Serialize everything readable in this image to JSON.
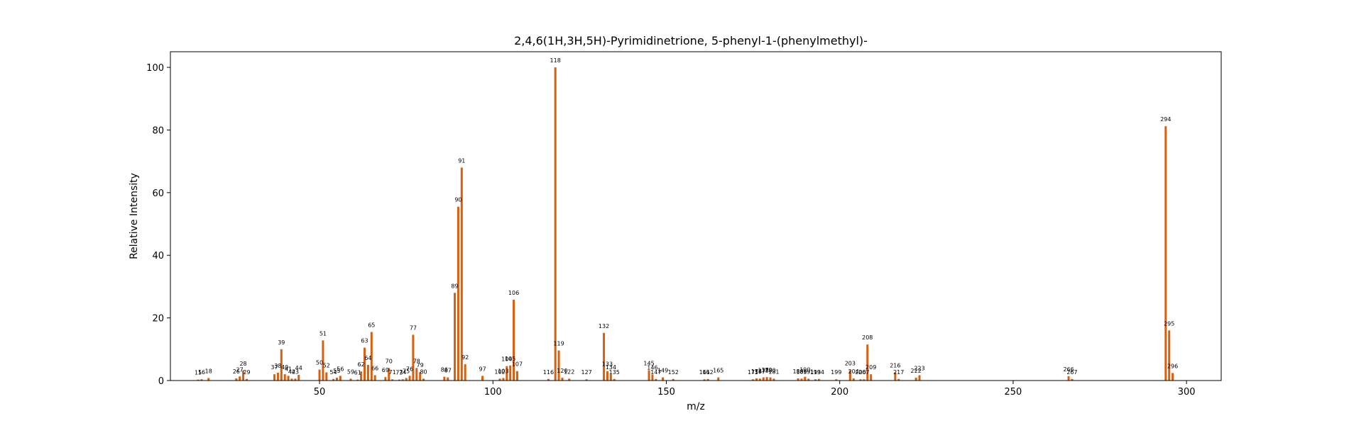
{
  "chart_data": {
    "type": "bar",
    "title": "2,4,6(1H,3H,5H)-Pyrimidinetrione, 5-phenyl-1-(phenylmethyl)-",
    "xlabel": "m/z",
    "ylabel": "Relative Intensity",
    "xlim": [
      7,
      310
    ],
    "ylim": [
      0,
      105
    ],
    "xticks": [
      50,
      100,
      150,
      200,
      250,
      300
    ],
    "yticks": [
      0,
      20,
      40,
      60,
      80,
      100
    ],
    "bar_color": "#d95f0e",
    "grid": false,
    "legend": "none",
    "peaks": [
      {
        "mz": 15,
        "intensity": 0.3
      },
      {
        "mz": 16,
        "intensity": 0.4
      },
      {
        "mz": 18,
        "intensity": 0.8
      },
      {
        "mz": 26,
        "intensity": 0.7
      },
      {
        "mz": 27,
        "intensity": 1.3
      },
      {
        "mz": 28,
        "intensity": 3.2
      },
      {
        "mz": 29,
        "intensity": 0.5
      },
      {
        "mz": 37,
        "intensity": 2.0
      },
      {
        "mz": 38,
        "intensity": 2.5
      },
      {
        "mz": 39,
        "intensity": 10.0
      },
      {
        "mz": 40,
        "intensity": 2.0
      },
      {
        "mz": 41,
        "intensity": 1.5
      },
      {
        "mz": 42,
        "intensity": 0.6
      },
      {
        "mz": 43,
        "intensity": 0.6
      },
      {
        "mz": 44,
        "intensity": 1.8
      },
      {
        "mz": 50,
        "intensity": 3.5
      },
      {
        "mz": 51,
        "intensity": 12.8
      },
      {
        "mz": 52,
        "intensity": 2.6
      },
      {
        "mz": 54,
        "intensity": 0.5
      },
      {
        "mz": 55,
        "intensity": 0.9
      },
      {
        "mz": 56,
        "intensity": 1.5
      },
      {
        "mz": 59,
        "intensity": 0.6
      },
      {
        "mz": 61,
        "intensity": 0.3
      },
      {
        "mz": 62,
        "intensity": 2.9
      },
      {
        "mz": 63,
        "intensity": 10.5
      },
      {
        "mz": 64,
        "intensity": 5.0
      },
      {
        "mz": 65,
        "intensity": 15.5
      },
      {
        "mz": 66,
        "intensity": 1.7
      },
      {
        "mz": 69,
        "intensity": 1.1
      },
      {
        "mz": 70,
        "intensity": 4.0
      },
      {
        "mz": 71,
        "intensity": 0.4
      },
      {
        "mz": 73,
        "intensity": 0.3
      },
      {
        "mz": 74,
        "intensity": 0.4
      },
      {
        "mz": 75,
        "intensity": 0.8
      },
      {
        "mz": 76,
        "intensity": 1.5
      },
      {
        "mz": 77,
        "intensity": 14.6
      },
      {
        "mz": 78,
        "intensity": 4.0
      },
      {
        "mz": 79,
        "intensity": 2.7
      },
      {
        "mz": 80,
        "intensity": 0.6
      },
      {
        "mz": 86,
        "intensity": 1.2
      },
      {
        "mz": 87,
        "intensity": 1.0
      },
      {
        "mz": 89,
        "intensity": 28.0
      },
      {
        "mz": 90,
        "intensity": 55.5
      },
      {
        "mz": 91,
        "intensity": 68.0
      },
      {
        "mz": 92,
        "intensity": 5.2
      },
      {
        "mz": 97,
        "intensity": 1.5
      },
      {
        "mz": 102,
        "intensity": 0.6
      },
      {
        "mz": 103,
        "intensity": 0.8
      },
      {
        "mz": 104,
        "intensity": 4.6
      },
      {
        "mz": 105,
        "intensity": 4.8
      },
      {
        "mz": 106,
        "intensity": 25.8
      },
      {
        "mz": 107,
        "intensity": 3.0
      },
      {
        "mz": 116,
        "intensity": 0.5
      },
      {
        "mz": 118,
        "intensity": 100.0
      },
      {
        "mz": 119,
        "intensity": 9.6
      },
      {
        "mz": 120,
        "intensity": 0.9
      },
      {
        "mz": 122,
        "intensity": 0.6
      },
      {
        "mz": 127,
        "intensity": 0.4
      },
      {
        "mz": 132,
        "intensity": 15.2
      },
      {
        "mz": 133,
        "intensity": 3.0
      },
      {
        "mz": 134,
        "intensity": 2.0
      },
      {
        "mz": 135,
        "intensity": 0.5
      },
      {
        "mz": 145,
        "intensity": 3.3
      },
      {
        "mz": 146,
        "intensity": 1.9
      },
      {
        "mz": 147,
        "intensity": 0.5
      },
      {
        "mz": 149,
        "intensity": 1.0
      },
      {
        "mz": 152,
        "intensity": 0.5
      },
      {
        "mz": 161,
        "intensity": 0.4
      },
      {
        "mz": 162,
        "intensity": 0.5
      },
      {
        "mz": 165,
        "intensity": 1.0
      },
      {
        "mz": 175,
        "intensity": 0.4
      },
      {
        "mz": 176,
        "intensity": 0.7
      },
      {
        "mz": 177,
        "intensity": 0.6
      },
      {
        "mz": 178,
        "intensity": 1.0
      },
      {
        "mz": 179,
        "intensity": 1.1
      },
      {
        "mz": 180,
        "intensity": 1.0
      },
      {
        "mz": 181,
        "intensity": 0.6
      },
      {
        "mz": 188,
        "intensity": 0.7
      },
      {
        "mz": 189,
        "intensity": 0.6
      },
      {
        "mz": 190,
        "intensity": 1.2
      },
      {
        "mz": 191,
        "intensity": 0.6
      },
      {
        "mz": 193,
        "intensity": 0.4
      },
      {
        "mz": 194,
        "intensity": 0.5
      },
      {
        "mz": 199,
        "intensity": 0.4
      },
      {
        "mz": 203,
        "intensity": 3.3
      },
      {
        "mz": 204,
        "intensity": 0.7
      },
      {
        "mz": 206,
        "intensity": 0.4
      },
      {
        "mz": 207,
        "intensity": 0.4
      },
      {
        "mz": 208,
        "intensity": 11.5
      },
      {
        "mz": 209,
        "intensity": 2.0
      },
      {
        "mz": 216,
        "intensity": 2.6
      },
      {
        "mz": 217,
        "intensity": 0.5
      },
      {
        "mz": 222,
        "intensity": 0.9
      },
      {
        "mz": 223,
        "intensity": 1.7
      },
      {
        "mz": 266,
        "intensity": 1.4
      },
      {
        "mz": 267,
        "intensity": 0.5
      },
      {
        "mz": 294,
        "intensity": 81.2
      },
      {
        "mz": 295,
        "intensity": 16.0
      },
      {
        "mz": 296,
        "intensity": 2.4
      }
    ]
  }
}
